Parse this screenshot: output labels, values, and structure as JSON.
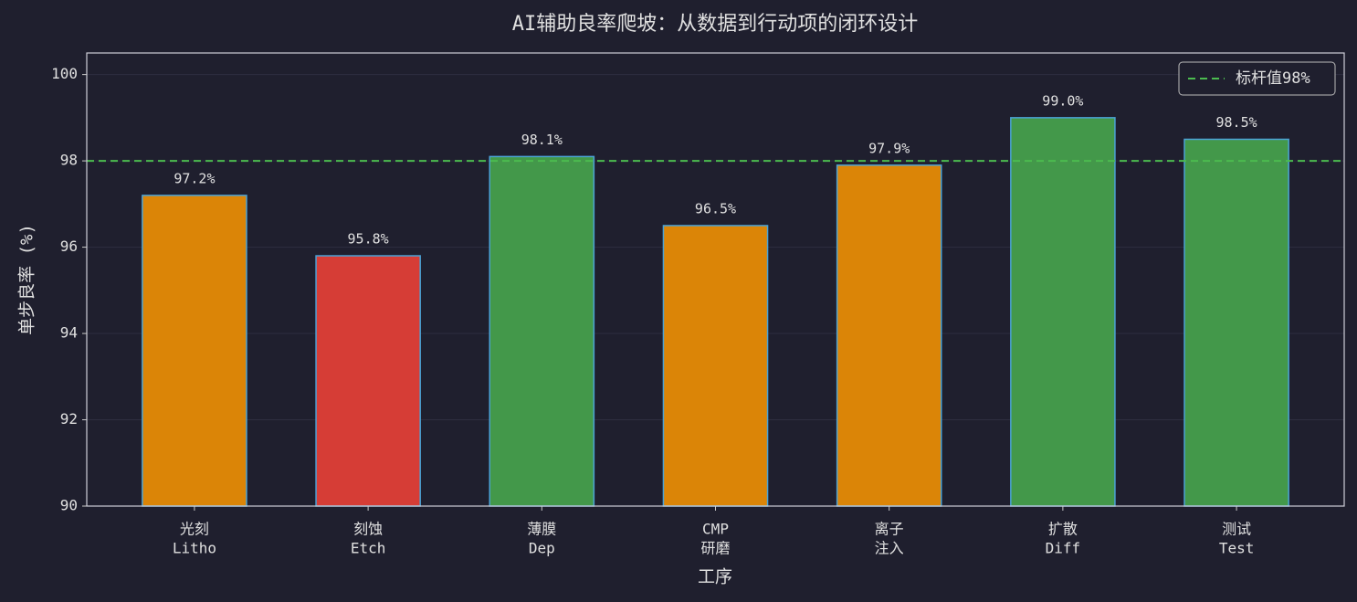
{
  "chart_data": {
    "type": "bar",
    "title": "AI辅助良率爬坡：从数据到行动项的闭环设计",
    "xlabel": "工序",
    "ylabel": "单步良率 (%)",
    "categories": [
      [
        "光刻",
        "Litho"
      ],
      [
        "刻蚀",
        "Etch"
      ],
      [
        "薄膜",
        "Dep"
      ],
      [
        "CMP",
        "研磨"
      ],
      [
        "离子",
        "注入"
      ],
      [
        "扩散",
        "Diff"
      ],
      [
        "测试",
        "Test"
      ]
    ],
    "values": [
      97.2,
      95.8,
      98.1,
      96.5,
      97.9,
      99.0,
      98.5
    ],
    "value_labels": [
      "97.2%",
      "95.8%",
      "98.1%",
      "96.5%",
      "97.9%",
      "99.0%",
      "98.5%"
    ],
    "colors": [
      "#db8507",
      "#d63d36",
      "#43984a",
      "#db8507",
      "#db8507",
      "#43984a",
      "#43984a"
    ],
    "edge_color": "#4ba3d6",
    "reference_line": {
      "value": 98,
      "label": "标杆值98%",
      "color": "#4cbb4f"
    },
    "legend": "upper right",
    "ylim": [
      90,
      100.5
    ],
    "yticks": [
      90,
      92,
      94,
      96,
      98,
      100
    ],
    "grid": true
  }
}
